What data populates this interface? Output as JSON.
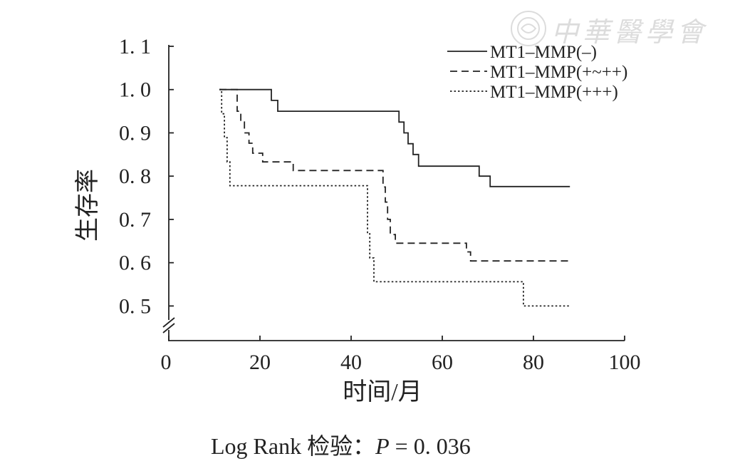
{
  "watermark": {
    "text": "中華醫學會"
  },
  "chart_data": {
    "type": "line",
    "step": true,
    "xlabel": "时间/月",
    "ylabel": "生存率",
    "xlim": [
      0,
      100
    ],
    "ylim": [
      0.42,
      1.1
    ],
    "y_axis_break": true,
    "grid": false,
    "legend_position": "top-right",
    "xticks": [
      0,
      20,
      40,
      60,
      80,
      100
    ],
    "xtick_labels": [
      "0",
      "20",
      "40",
      "60",
      "80",
      "100"
    ],
    "yticks": [
      1.1,
      1.0,
      0.9,
      0.8,
      0.7,
      0.6,
      0.5
    ],
    "ytick_labels": [
      "1. 1",
      "1. 0",
      "0. 9",
      "0. 8",
      "0. 7",
      "0. 6",
      "0. 5"
    ],
    "series": [
      {
        "name": "MT1–MMP(–)",
        "line_style": "solid",
        "color": "#222222",
        "x": [
          11.1,
          22.5,
          23.9,
          50.5,
          51.6,
          52.5,
          53.6,
          54.8,
          68.1,
          70.5,
          88.0
        ],
        "y": [
          1.0,
          0.975,
          0.95,
          0.925,
          0.9,
          0.875,
          0.85,
          0.823,
          0.8,
          0.776,
          0.776
        ]
      },
      {
        "name": "MT1–MMP(+~++)",
        "line_style": "dashed",
        "color": "#222222",
        "x": [
          11.1,
          15.0,
          15.8,
          16.6,
          17.6,
          18.4,
          20.6,
          27.3,
          47.0,
          47.5,
          48.0,
          48.6,
          49.7,
          65.3,
          66.2,
          88.0
        ],
        "y": [
          1.0,
          0.95,
          0.925,
          0.9,
          0.876,
          0.853,
          0.833,
          0.813,
          0.775,
          0.74,
          0.7,
          0.665,
          0.645,
          0.625,
          0.604,
          0.604
        ]
      },
      {
        "name": "MT1–MMP(+++)",
        "line_style": "dotted",
        "color": "#222222",
        "x": [
          11.1,
          11.6,
          12.2,
          12.8,
          13.4,
          43.6,
          44.1,
          45.0,
          77.8,
          88.0
        ],
        "y": [
          1.0,
          0.944,
          0.889,
          0.833,
          0.778,
          0.667,
          0.611,
          0.556,
          0.5,
          0.5
        ]
      }
    ],
    "annotation": {
      "prefix": "Log Rank 检验：",
      "p_symbol": "P",
      "value": " = 0. 036"
    }
  }
}
